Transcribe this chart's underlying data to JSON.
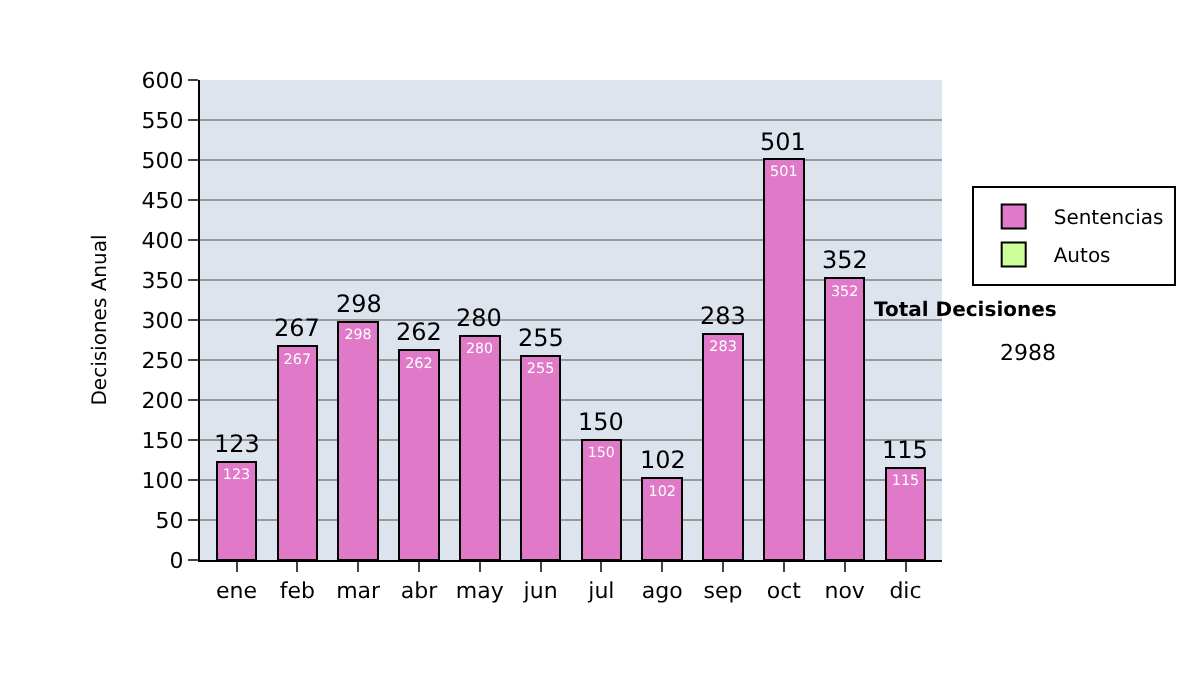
{
  "chart_data": {
    "type": "bar",
    "stacked": true,
    "ylabel": "Decisiones Anual",
    "categories": [
      "ene",
      "feb",
      "mar",
      "abr",
      "may",
      "jun",
      "jul",
      "ago",
      "sep",
      "oct",
      "nov",
      "dic"
    ],
    "series": [
      {
        "name": "Sentencias",
        "color": "#e07ac8",
        "values": [
          123,
          267,
          298,
          262,
          280,
          255,
          150,
          102,
          283,
          501,
          352,
          115
        ],
        "value_labels": [
          "123",
          "267",
          "298",
          "262",
          "280",
          "255",
          "150",
          "102",
          "283",
          "501",
          "352",
          "115"
        ]
      },
      {
        "name": "Autos",
        "color": "#ccff99",
        "values": [
          null,
          null,
          null,
          null,
          null,
          null,
          null,
          null,
          null,
          null,
          null,
          null
        ]
      }
    ],
    "totals": [
      "123",
      "267",
      "298",
      "262",
      "280",
      "255",
      "150",
      "102",
      "283",
      "501",
      "352",
      "115"
    ],
    "ylim": [
      0,
      600
    ],
    "yticks": [
      0,
      50,
      100,
      150,
      200,
      250,
      300,
      350,
      400,
      450,
      500,
      550,
      600
    ],
    "grid": "y",
    "legend": "right",
    "annotations": [
      "Total Decisiones",
      "2988"
    ]
  }
}
